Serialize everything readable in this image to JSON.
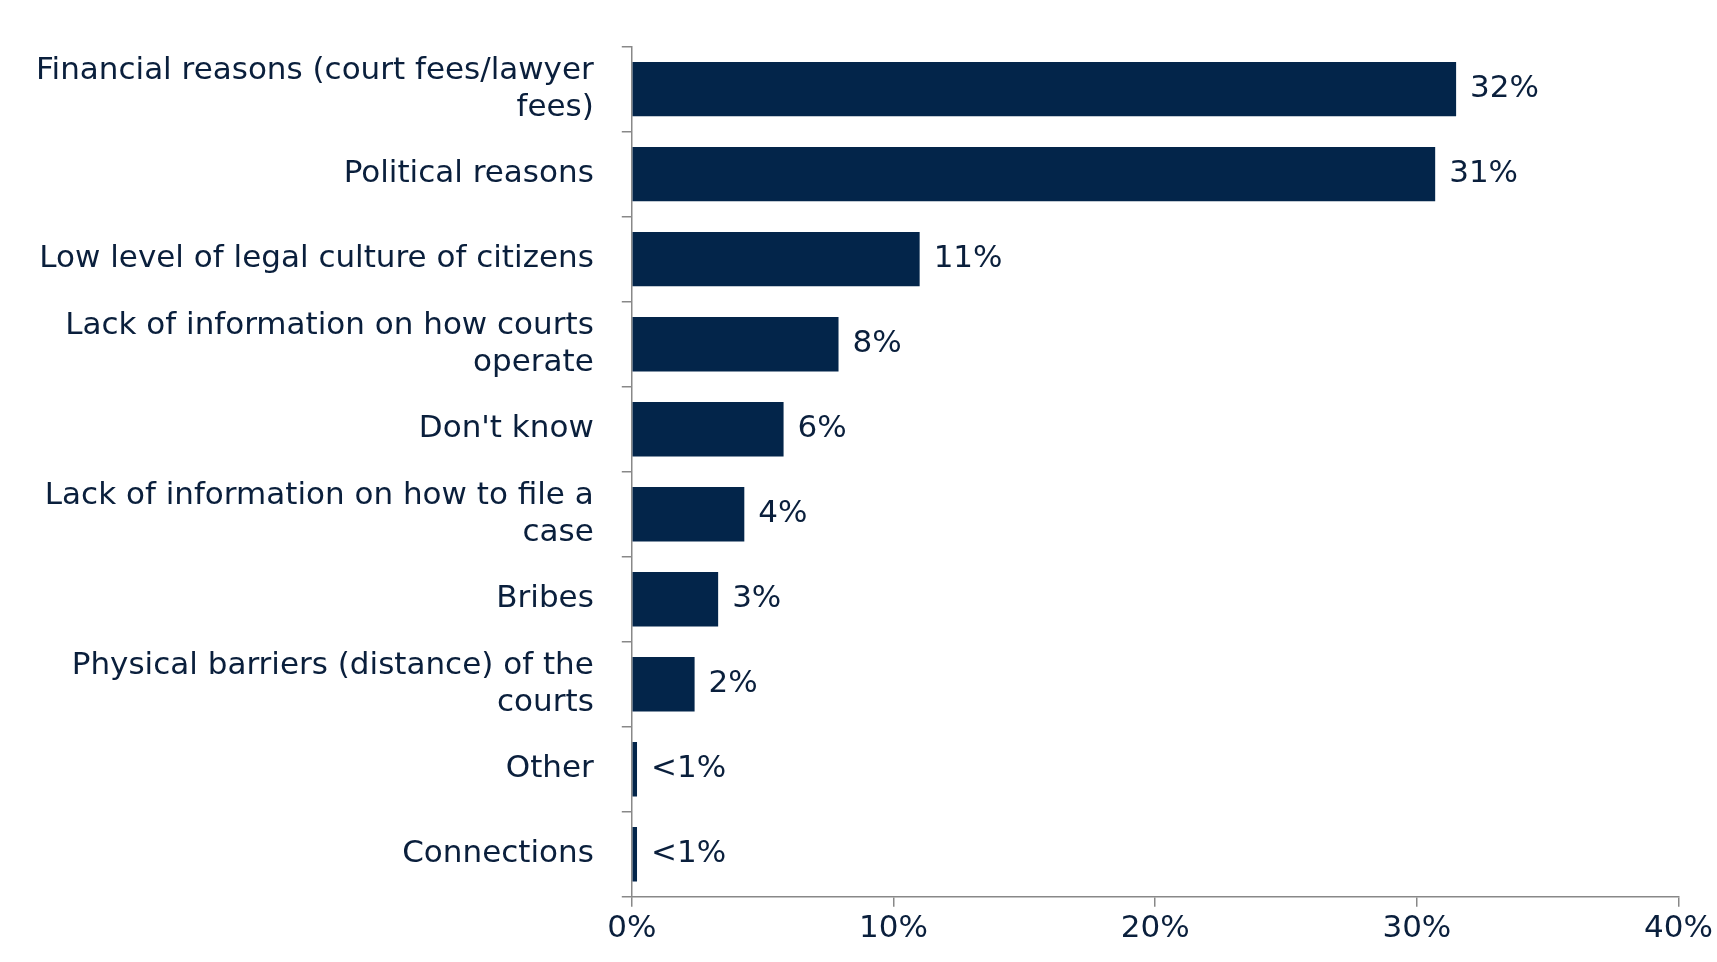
{
  "chart_data": {
    "type": "bar",
    "orientation": "horizontal",
    "categories": [
      "Financial reasons (court fees/lawyer fees)",
      "Political reasons",
      "Low level of legal culture of citizens",
      "Lack of information on how courts operate",
      "Don't know",
      "Lack of information on how to file a case",
      "Bribes",
      "Physical barriers (distance) of the courts",
      "Other",
      "Connections"
    ],
    "values": [
      31.5,
      30.7,
      11.0,
      7.9,
      5.8,
      4.3,
      3.3,
      2.4,
      0.2,
      0.2
    ],
    "value_labels": [
      "32%",
      "31%",
      "11%",
      "8%",
      "6%",
      "4%",
      "3%",
      "2%",
      "<1%",
      "<1%"
    ],
    "color": "#03254a",
    "xlim": [
      0,
      40
    ],
    "xticks": [
      {
        "value": 0,
        "label": "0%"
      },
      {
        "value": 10,
        "label": "10%"
      },
      {
        "value": 20,
        "label": "20%"
      },
      {
        "value": 30,
        "label": "30%"
      },
      {
        "value": 40,
        "label": "40%"
      }
    ],
    "grid": false,
    "legend": false
  }
}
